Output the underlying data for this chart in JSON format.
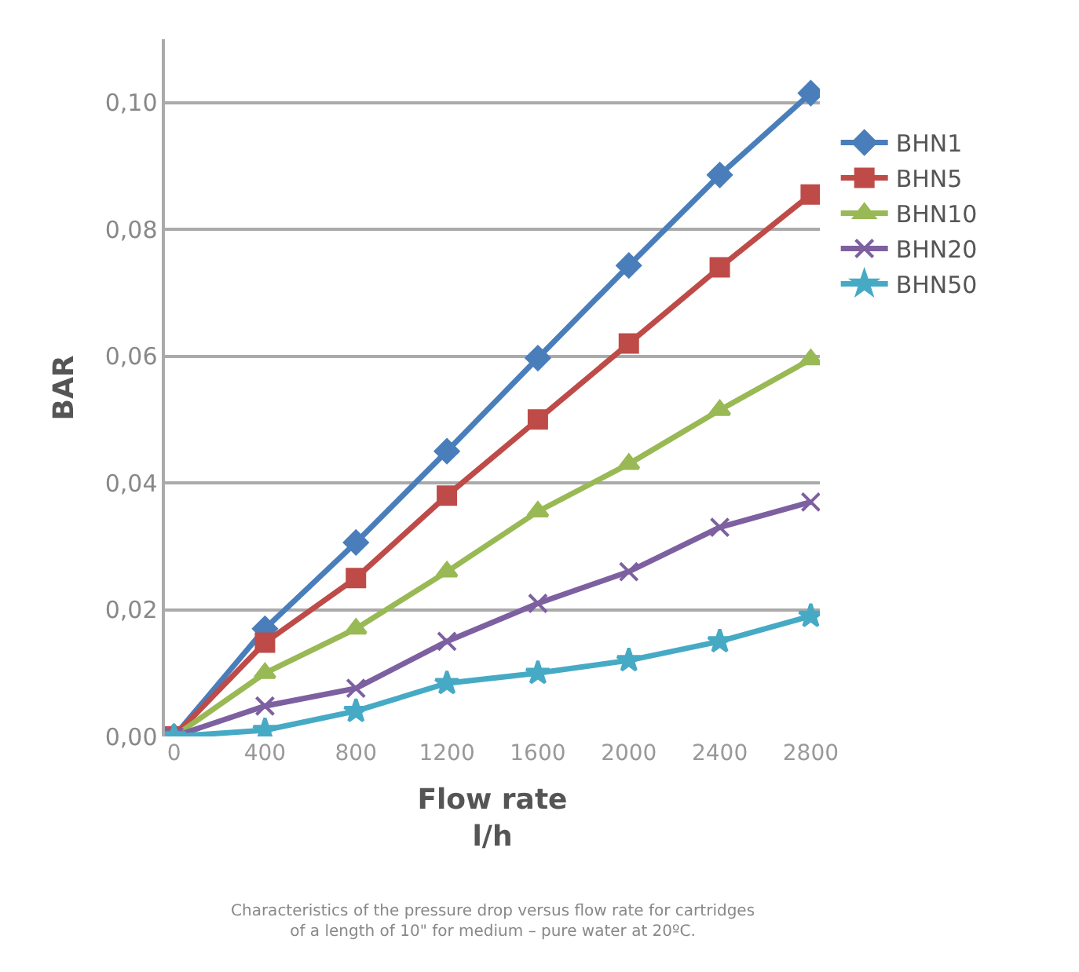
{
  "chart_data": {
    "type": "line",
    "xlabel": "Flow rate\nl/h",
    "ylabel": "BAR",
    "categories": [
      "0",
      "400",
      "800",
      "1200",
      "1600",
      "2000",
      "2400",
      "2800"
    ],
    "ylim": [
      0,
      0.11
    ],
    "yticks": [
      {
        "value": 0,
        "label": "0,00"
      },
      {
        "value": 0.02,
        "label": "0,02"
      },
      {
        "value": 0.04,
        "label": "0,04"
      },
      {
        "value": 0.06,
        "label": "0,06"
      },
      {
        "value": 0.08,
        "label": "0,08"
      },
      {
        "value": 0.1,
        "label": "0,10"
      }
    ],
    "grid": "y",
    "legend": "right",
    "series": [
      {
        "name": "BHN1",
        "color": "#4a7ebb",
        "marker": "diamond",
        "values": [
          0,
          0.017,
          0.0306,
          0.045,
          0.0597,
          0.0743,
          0.0886,
          0.1015
        ]
      },
      {
        "name": "BHN5",
        "color": "#be4b48",
        "marker": "square",
        "values": [
          0,
          0.0148,
          0.025,
          0.038,
          0.05,
          0.062,
          0.074,
          0.0855
        ]
      },
      {
        "name": "BHN10",
        "color": "#98b954",
        "marker": "triangle",
        "values": [
          0,
          0.01,
          0.017,
          0.026,
          0.0355,
          0.043,
          0.0515,
          0.0595
        ]
      },
      {
        "name": "BHN20",
        "color": "#7d60a0",
        "marker": "cross",
        "values": [
          0,
          0.0048,
          0.0076,
          0.015,
          0.021,
          0.026,
          0.033,
          0.037
        ]
      },
      {
        "name": "BHN50",
        "color": "#46aac5",
        "marker": "star",
        "values": [
          0,
          0.001,
          0.004,
          0.0084,
          0.01,
          0.012,
          0.015,
          0.019
        ]
      }
    ],
    "annotations": [
      "Characteristics of the pressure drop versus flow rate for cartridges\nof a length of 10\" for medium – pure water at 20ºC."
    ]
  }
}
